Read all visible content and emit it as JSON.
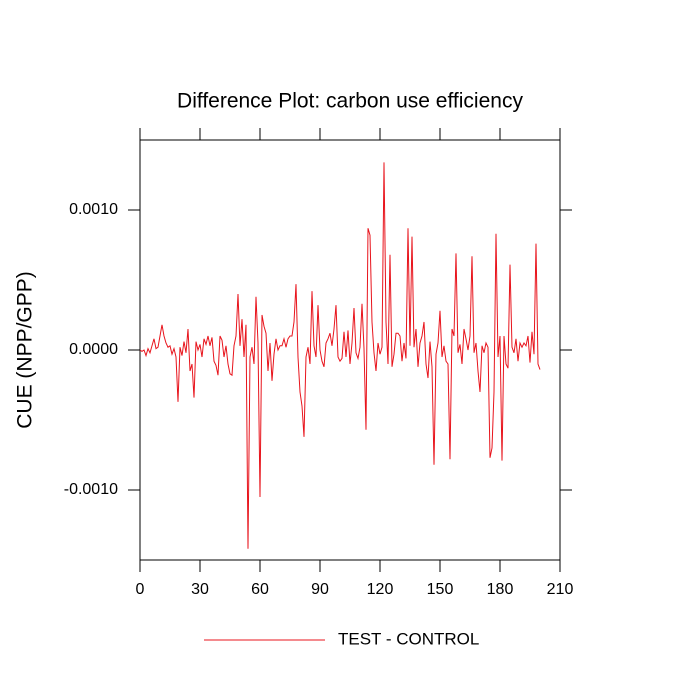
{
  "chart_data": {
    "type": "line",
    "title": "Difference Plot: carbon use efficiency",
    "ylabel": "CUE  (NPP/GPP)",
    "x": [
      0,
      1,
      2,
      3,
      4,
      5,
      6,
      7,
      8,
      9,
      10,
      11,
      12,
      13,
      14,
      15,
      16,
      17,
      18,
      19,
      20,
      21,
      22,
      23,
      24,
      25,
      26,
      27,
      28,
      29,
      30,
      31,
      32,
      33,
      34,
      35,
      36,
      37,
      38,
      39,
      40,
      41,
      42,
      43,
      44,
      45,
      46,
      47,
      48,
      49,
      50,
      51,
      52,
      53,
      54,
      55,
      56,
      57,
      58,
      59,
      60,
      61,
      62,
      63,
      64,
      65,
      66,
      67,
      68,
      69,
      70,
      71,
      72,
      73,
      74,
      75,
      76,
      77,
      78,
      79,
      80,
      81,
      82,
      83,
      84,
      85,
      86,
      87,
      88,
      89,
      90,
      91,
      92,
      93,
      94,
      95,
      96,
      97,
      98,
      99,
      100,
      101,
      102,
      103,
      104,
      105,
      106,
      107,
      108,
      109,
      110,
      111,
      112,
      113,
      114,
      115,
      116,
      117,
      118,
      119,
      120,
      121,
      122,
      123,
      124,
      125,
      126,
      127,
      128,
      129,
      130,
      131,
      132,
      133,
      134,
      135,
      136,
      137,
      138,
      139,
      140,
      141,
      142,
      143,
      144,
      145,
      146,
      147,
      148,
      149,
      150,
      151,
      152,
      153,
      154,
      155,
      156,
      157,
      158,
      159,
      160,
      161,
      162,
      163,
      164,
      165,
      166,
      167,
      168,
      169,
      170,
      171,
      172,
      173,
      174,
      175,
      176,
      177,
      178,
      179,
      180,
      181,
      182,
      183,
      184,
      185,
      186,
      187,
      188,
      189,
      190,
      191,
      192,
      193,
      194,
      195,
      196,
      197,
      198,
      199,
      200
    ],
    "series": [
      {
        "name": "TEST - CONTROL",
        "color": "#e8141c",
        "values": [
          0.0,
          -1e-05,
          0.0,
          -4e-05,
          1e-05,
          -2e-05,
          3e-05,
          8e-05,
          1e-05,
          2e-05,
          0.0001,
          0.00018,
          0.0001,
          5e-05,
          2e-05,
          3e-05,
          -3e-05,
          1e-05,
          -5e-05,
          -0.00037,
          2e-05,
          -4e-05,
          6e-05,
          -2e-05,
          0.00015,
          -0.00015,
          -0.0001,
          -0.00034,
          6e-05,
          0.0,
          4e-05,
          -5e-05,
          8e-05,
          4e-05,
          0.0001,
          3e-05,
          9e-05,
          -8e-05,
          -0.00011,
          -0.00018,
          0.0001,
          7e-05,
          -5e-05,
          3e-05,
          -0.0001,
          -0.00017,
          -0.00018,
          3e-05,
          0.0001,
          0.0004,
          3e-05,
          0.00022,
          -5e-05,
          0.00018,
          -0.00142,
          -5e-05,
          2e-05,
          -0.0001,
          0.00038,
          5e-05,
          -0.00105,
          0.00025,
          0.00017,
          0.00012,
          -0.00015,
          5e-05,
          -0.00022,
          -3e-05,
          8e-05,
          0.0,
          3e-05,
          3e-05,
          8e-05,
          2e-05,
          8e-05,
          0.0001,
          0.0001,
          0.0002,
          0.00047,
          -5e-05,
          -0.0003,
          -0.0004,
          -0.00062,
          -5e-05,
          2e-05,
          -0.0001,
          0.00042,
          3e-05,
          -5e-05,
          0.00032,
          0.0,
          -8e-05,
          -0.00012,
          5e-05,
          8e-05,
          0.00012,
          3e-05,
          0.00015,
          0.00032,
          -5e-05,
          -8e-05,
          -6e-05,
          0.00013,
          -5e-05,
          0.00014,
          -0.0001,
          5e-05,
          0.0003,
          -2e-05,
          -6e-05,
          2e-05,
          0.00033,
          1e-05,
          -0.00057,
          0.00087,
          0.00082,
          0.0002,
          -2e-05,
          -0.00015,
          5e-05,
          -3e-05,
          2e-05,
          0.00134,
          0.0002,
          -0.0001,
          0.00068,
          -0.00012,
          -3e-05,
          0.00012,
          0.00012,
          0.0001,
          -8e-05,
          5e-05,
          -6e-05,
          0.00087,
          3e-05,
          0.00081,
          2e-05,
          0.00015,
          -0.00012,
          5e-05,
          0.0001,
          0.0002,
          -0.0001,
          -0.0002,
          6e-05,
          -0.00012,
          -0.00082,
          -3e-05,
          5e-05,
          0.00028,
          -5e-05,
          3e-05,
          -8e-05,
          -0.0001,
          -0.00078,
          0.00015,
          0.0001,
          0.00069,
          -2e-05,
          4e-05,
          -0.0001,
          0.00015,
          8e-05,
          0.0,
          0.0001,
          0.00067,
          -2e-05,
          5e-05,
          -0.00015,
          -0.0003,
          3e-05,
          -2e-05,
          5e-05,
          2e-05,
          -0.00077,
          -0.0007,
          -0.0003,
          0.00083,
          -5e-05,
          0.0001,
          -0.00079,
          0.0001,
          -0.0001,
          -0.00013,
          0.00061,
          2e-05,
          -2e-05,
          8e-05,
          -8e-05,
          5e-05,
          2e-05,
          5e-05,
          3e-05,
          0.0001,
          -9e-05,
          0.00013,
          -3e-05,
          0.00076,
          -0.0001,
          -0.00014
        ]
      }
    ],
    "xlim": [
      0,
      210
    ],
    "xticks": [
      0,
      30,
      60,
      90,
      120,
      150,
      180,
      210
    ],
    "ylim": [
      -0.0015,
      0.0015
    ],
    "yticks": [
      {
        "value": -0.001,
        "label": "-0.0010"
      },
      {
        "value": 0,
        "label": "0.0000"
      },
      {
        "value": 0.001,
        "label": "0.0010"
      }
    ],
    "legend": "bottom"
  }
}
